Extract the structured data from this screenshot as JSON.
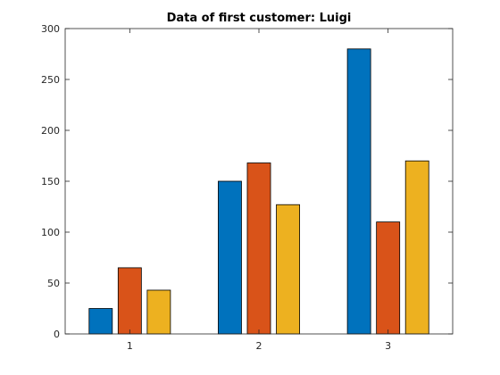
{
  "chart_data": {
    "type": "bar",
    "title": "Data of first customer: Luigi",
    "xlabel": "",
    "ylabel": "",
    "categories": [
      "1",
      "2",
      "3"
    ],
    "series": [
      {
        "values": [
          25,
          150,
          280
        ],
        "color": "#0072BD"
      },
      {
        "values": [
          65,
          168,
          110
        ],
        "color": "#D95319"
      },
      {
        "values": [
          43,
          127,
          170
        ],
        "color": "#EDB120"
      }
    ],
    "ylim": [
      0,
      300
    ],
    "yticks": [
      0,
      50,
      100,
      150,
      200,
      250,
      300
    ],
    "xlim": [
      0.5,
      3.5
    ],
    "grid": false,
    "legend": "none"
  }
}
